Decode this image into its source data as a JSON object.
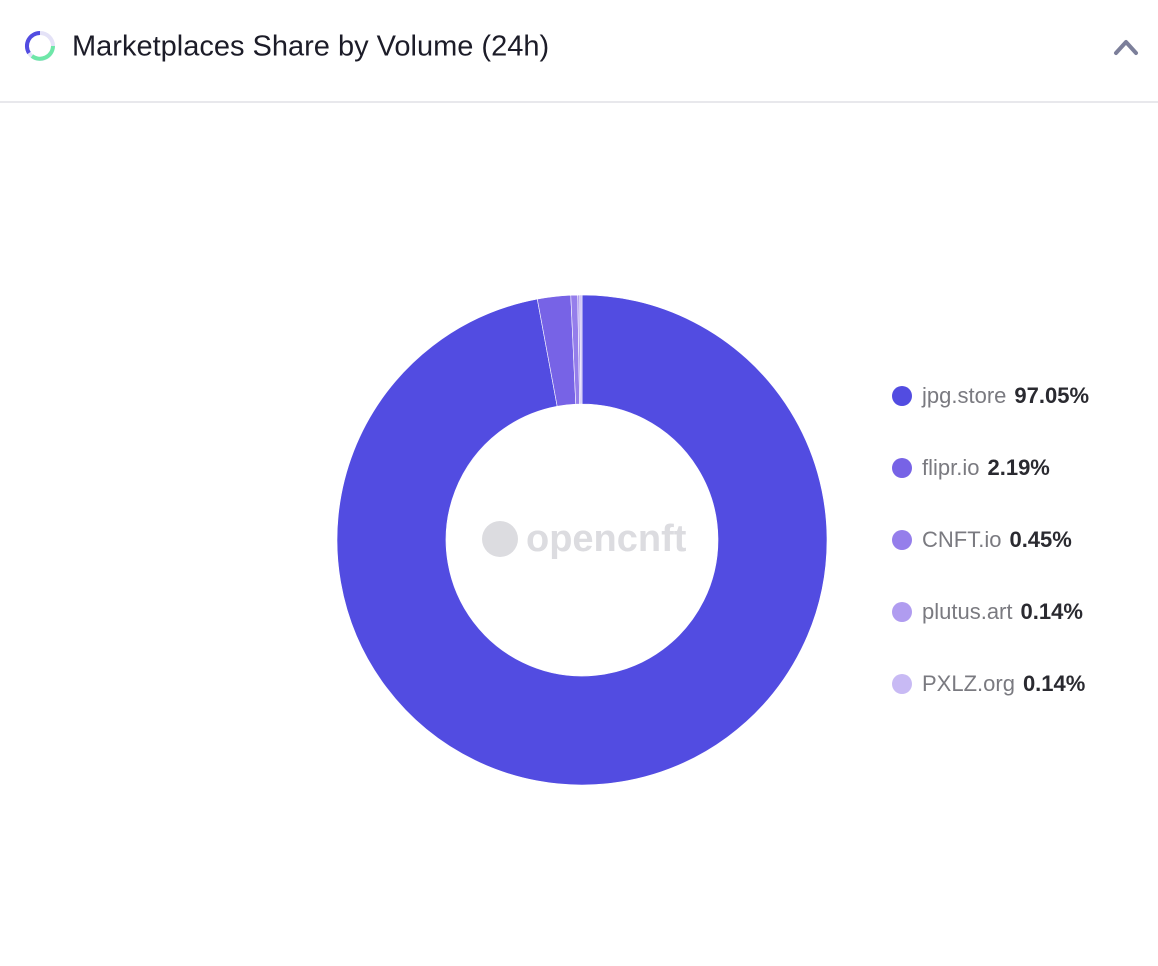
{
  "chart_data": {
    "type": "pie",
    "title": "Marketplaces Share by Volume (24h)",
    "watermark": "opencnft",
    "categories": [
      "jpg.store",
      "flipr.io",
      "CNFT.io",
      "plutus.art",
      "PXLZ.org"
    ],
    "values": [
      97.05,
      2.19,
      0.45,
      0.14,
      0.14
    ],
    "value_labels": [
      "97.05%",
      "2.19%",
      "0.45%",
      "0.14%",
      "0.14%"
    ],
    "colors": [
      "#524ce1",
      "#7763e6",
      "#957eeb",
      "#b09cf0",
      "#c8baf4"
    ],
    "legend": "right"
  }
}
